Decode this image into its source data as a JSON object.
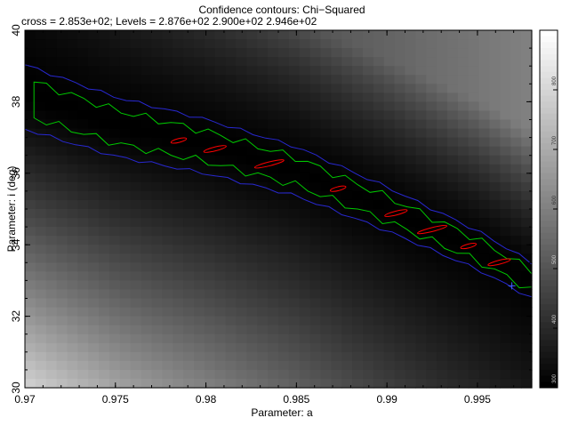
{
  "chart_data": {
    "type": "heatmap",
    "title": "Confidence contours: Chi−Squared",
    "subtitle": "cross = 2.853e+02; Levels =  2.876e+02 2.900e+02 2.946e+02",
    "xlabel": "Parameter: a",
    "ylabel": "Parameter: i (deg)",
    "xlim": [
      0.97,
      0.998
    ],
    "ylim": [
      30,
      40
    ],
    "xticks": [
      0.97,
      0.975,
      0.98,
      0.985,
      0.99,
      0.995
    ],
    "xtick_labels": [
      "0.97",
      "0.975",
      "0.98",
      "0.985",
      "0.99",
      "0.995"
    ],
    "yticks": [
      30,
      32,
      34,
      36,
      38,
      40
    ],
    "ytick_labels": [
      "30",
      "32",
      "34",
      "36",
      "38",
      "40"
    ],
    "cross": {
      "a": 0.9969,
      "i": 32.85,
      "value": 285.3
    },
    "levels": [
      287.6,
      290.0,
      294.6
    ],
    "level_colors": [
      "#ff0000",
      "#00c800",
      "#2828d0"
    ],
    "colorbar": {
      "range": [
        300,
        900
      ],
      "tick_labels": [
        "300",
        "400",
        "500",
        "600",
        "700",
        "800"
      ]
    },
    "valley": {
      "center_line": [
        [
          0.9705,
          38.05
        ],
        [
          0.975,
          37.3
        ],
        [
          0.98,
          36.75
        ],
        [
          0.985,
          36.05
        ],
        [
          0.99,
          35.0
        ],
        [
          0.995,
          33.85
        ],
        [
          0.998,
          33.0
        ]
      ],
      "level_halfwidths_deg": [
        0.12,
        0.5,
        0.9
      ]
    }
  }
}
